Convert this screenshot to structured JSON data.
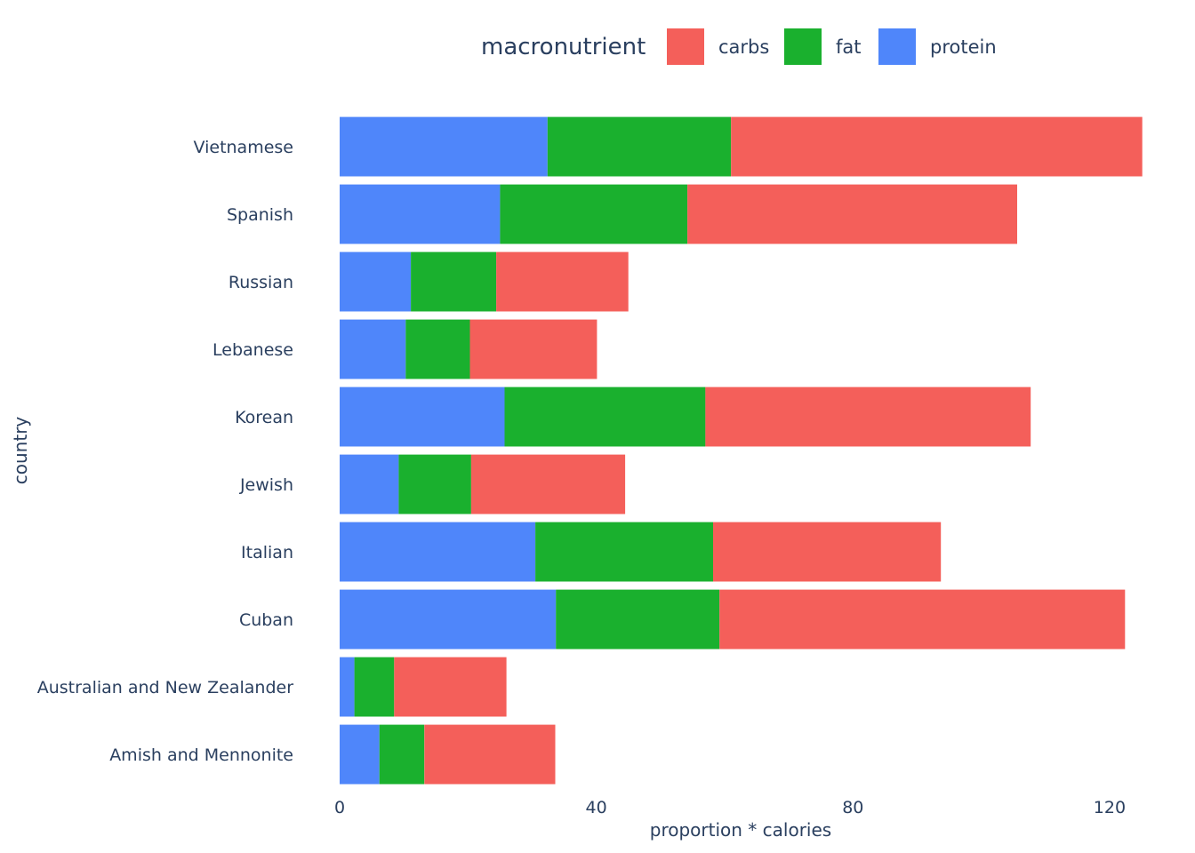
{
  "chart_data": {
    "type": "bar",
    "orientation": "horizontal",
    "stacked": true,
    "categories": [
      "Amish and Mennonite",
      "Australian and New Zealander",
      "Cuban",
      "Italian",
      "Jewish",
      "Korean",
      "Lebanese",
      "Russian",
      "Spanish",
      "Vietnamese"
    ],
    "series": [
      {
        "name": "protein",
        "color": "#4f86fa",
        "values": [
          6.2,
          2.3,
          33.7,
          30.5,
          9.2,
          25.7,
          10.3,
          11.1,
          25.0,
          32.4
        ]
      },
      {
        "name": "fat",
        "color": "#1ab02e",
        "values": [
          7.0,
          6.2,
          25.5,
          27.7,
          11.3,
          31.3,
          10.0,
          13.3,
          29.2,
          28.6
        ]
      },
      {
        "name": "carbs",
        "color": "#f45f5a",
        "values": [
          20.4,
          17.5,
          63.2,
          35.5,
          24.0,
          50.7,
          19.8,
          20.6,
          51.4,
          64.1
        ]
      }
    ],
    "legend_title": "macronutrient",
    "legend_order": [
      "carbs",
      "fat",
      "protein"
    ],
    "legend_placement": "top",
    "xlabel": "proportion * calories",
    "ylabel": "country",
    "x_ticks": [
      0,
      40,
      80,
      120
    ],
    "xlim": [
      0,
      125
    ],
    "grid": false
  }
}
